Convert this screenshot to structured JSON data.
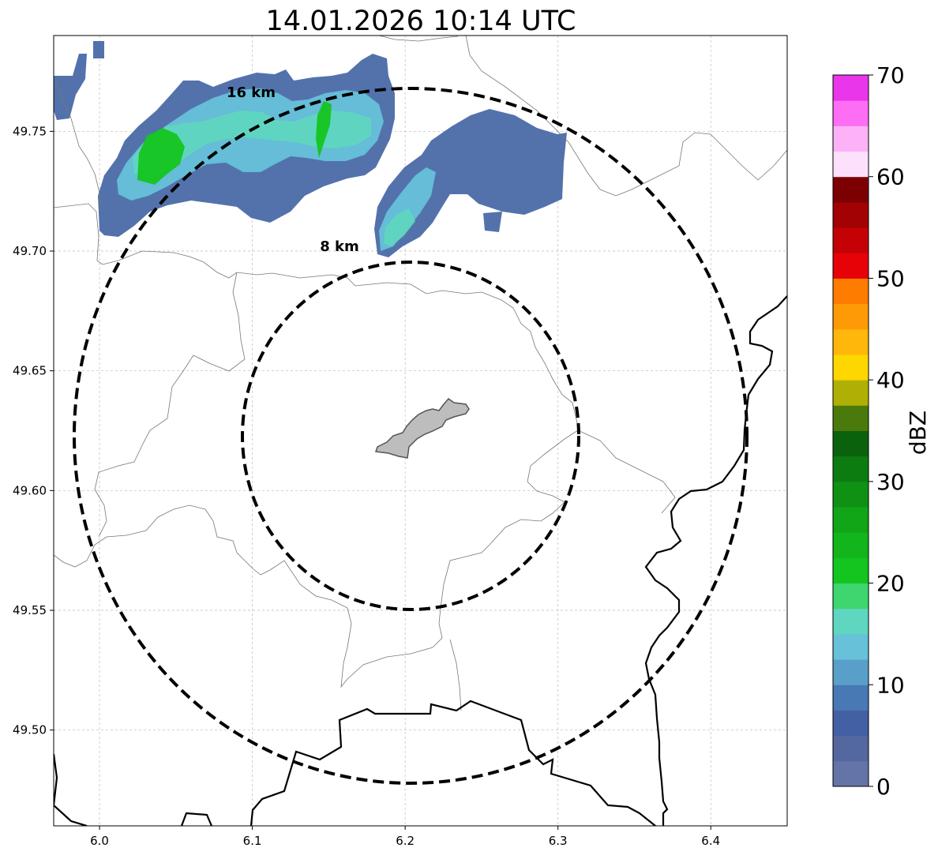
{
  "title": "14.01.2026 10:14 UTC",
  "map": {
    "lon_range": [
      5.97,
      6.45
    ],
    "lat_range": [
      49.46,
      49.79
    ],
    "x_ticks": [
      {
        "value": 6.0,
        "label": "6.0"
      },
      {
        "value": 6.1,
        "label": "6.1"
      },
      {
        "value": 6.2,
        "label": "6.2"
      },
      {
        "value": 6.3,
        "label": "6.3"
      },
      {
        "value": 6.4,
        "label": "6.4"
      }
    ],
    "y_ticks": [
      {
        "value": 49.5,
        "label": "49.50"
      },
      {
        "value": 49.55,
        "label": "49.55"
      },
      {
        "value": 49.6,
        "label": "49.60"
      },
      {
        "value": 49.65,
        "label": "49.65"
      },
      {
        "value": 49.7,
        "label": "49.70"
      },
      {
        "value": 49.75,
        "label": "49.75"
      }
    ],
    "grid": true,
    "range_rings": [
      {
        "label": "8 km",
        "radius_km": 8
      },
      {
        "label": "16 km",
        "radius_km": 16
      }
    ],
    "city_area": "grey-polygon",
    "precip_colors": {
      "light": "#4a6aa8",
      "medium": "#66c1d9",
      "moderate": "#5fd6c0",
      "heavy": "#14c520"
    }
  },
  "colorbar": {
    "label": "dBZ",
    "min": 0,
    "max": 70,
    "ticks": [
      {
        "value": 0,
        "label": "0"
      },
      {
        "value": 10,
        "label": "10"
      },
      {
        "value": 20,
        "label": "20"
      },
      {
        "value": 30,
        "label": "30"
      },
      {
        "value": 40,
        "label": "40"
      },
      {
        "value": 50,
        "label": "50"
      },
      {
        "value": 60,
        "label": "60"
      },
      {
        "value": 70,
        "label": "70"
      }
    ],
    "bins": [
      {
        "from": 0,
        "to": 2.5,
        "color": "#6474a8"
      },
      {
        "from": 2.5,
        "to": 5,
        "color": "#54679f"
      },
      {
        "from": 5,
        "to": 7.5,
        "color": "#4460a4"
      },
      {
        "from": 7.5,
        "to": 10,
        "color": "#4879b4"
      },
      {
        "from": 10,
        "to": 12.5,
        "color": "#58a0c9"
      },
      {
        "from": 12.5,
        "to": 15,
        "color": "#66c1d9"
      },
      {
        "from": 15,
        "to": 17.5,
        "color": "#5fd6c0"
      },
      {
        "from": 17.5,
        "to": 20,
        "color": "#3ed66e"
      },
      {
        "from": 20,
        "to": 22.5,
        "color": "#14c520"
      },
      {
        "from": 22.5,
        "to": 25,
        "color": "#12b51c"
      },
      {
        "from": 25,
        "to": 27.5,
        "color": "#11a518"
      },
      {
        "from": 27.5,
        "to": 30,
        "color": "#0f9114"
      },
      {
        "from": 30,
        "to": 32.5,
        "color": "#0c7c10"
      },
      {
        "from": 32.5,
        "to": 35,
        "color": "#0a620c"
      },
      {
        "from": 35,
        "to": 37.5,
        "color": "#4a7a0c"
      },
      {
        "from": 37.5,
        "to": 40,
        "color": "#afb005"
      },
      {
        "from": 40,
        "to": 42.5,
        "color": "#fed600"
      },
      {
        "from": 42.5,
        "to": 45,
        "color": "#feb70a"
      },
      {
        "from": 45,
        "to": 47.5,
        "color": "#fe9a05"
      },
      {
        "from": 47.5,
        "to": 50,
        "color": "#fe7c00"
      },
      {
        "from": 50,
        "to": 52.5,
        "color": "#e60206"
      },
      {
        "from": 52.5,
        "to": 55,
        "color": "#c40205"
      },
      {
        "from": 55,
        "to": 57.5,
        "color": "#a20204"
      },
      {
        "from": 57.5,
        "to": 60,
        "color": "#7c0002"
      },
      {
        "from": 60,
        "to": 62.5,
        "color": "#fde0fb"
      },
      {
        "from": 62.5,
        "to": 65,
        "color": "#fdb2f8"
      },
      {
        "from": 65,
        "to": 67.5,
        "color": "#fd6ef5"
      },
      {
        "from": 67.5,
        "to": 70,
        "color": "#ea36ea"
      }
    ]
  }
}
